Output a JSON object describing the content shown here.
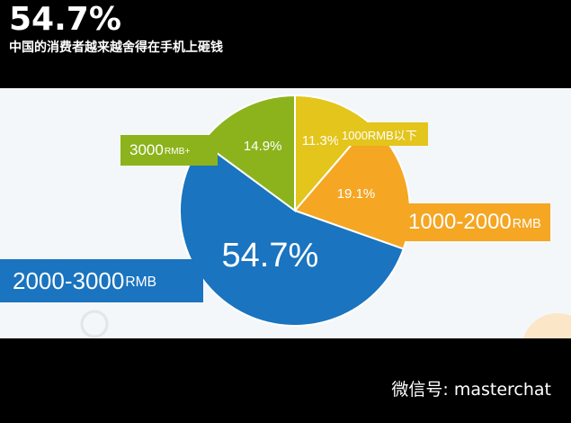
{
  "headline": "54.7%",
  "subtitle": "中国的消费者越来越舍得在手机上砸钱",
  "watermark": "微信号: masterchat",
  "chart_data": {
    "type": "pie",
    "slices": [
      {
        "label": "1000RMB以下",
        "label_main": "1000RMB以下",
        "label_unit": "",
        "value": 11.3,
        "value_label": "11.3%",
        "color": "#e3c51c"
      },
      {
        "label": "1000-2000RMB",
        "label_main": "1000-2000",
        "label_unit": "RMB",
        "value": 19.1,
        "value_label": "19.1%",
        "color": "#f5a623"
      },
      {
        "label": "2000-3000RMB",
        "label_main": "2000-3000",
        "label_unit": "RMB",
        "value": 54.7,
        "value_label": "54.7%",
        "color": "#1a74bf"
      },
      {
        "label": "3000RMB+",
        "label_main": "3000",
        "label_unit": "RMB+",
        "value": 14.9,
        "value_label": "14.9%",
        "color": "#8cb31b"
      }
    ],
    "start_angle": "12 o'clock",
    "direction": "clockwise",
    "legend": "callout-labels"
  }
}
